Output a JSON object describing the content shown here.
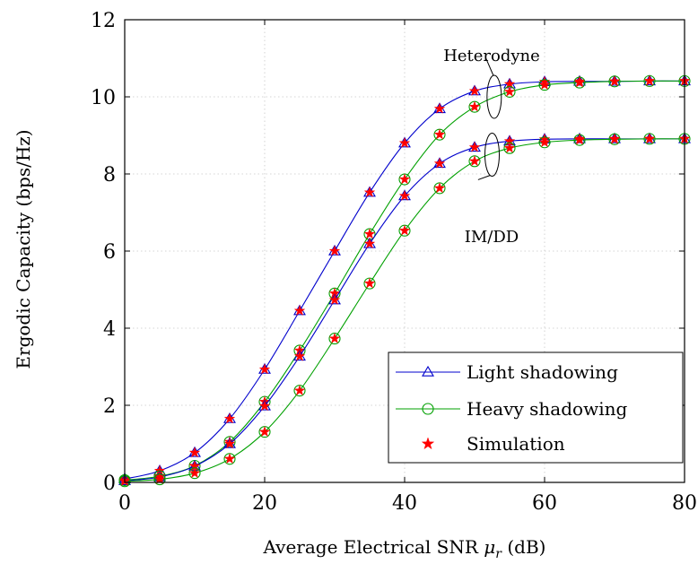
{
  "chart_data": {
    "type": "line",
    "xlabel": "Average Electrical SNR",
    "xlabel_symbol": "μ",
    "xlabel_subscript": "r",
    "xlabel_unit": "(dB)",
    "ylabel": "Ergodic Capacity (bps/Hz)",
    "xlim": [
      0,
      80
    ],
    "ylim": [
      0,
      12
    ],
    "xticks": [
      0,
      20,
      40,
      60,
      80
    ],
    "yticks": [
      0,
      2,
      4,
      6,
      8,
      10,
      12
    ],
    "grid": true,
    "legend_position": "bottom-right",
    "x": [
      0,
      5,
      10,
      15,
      20,
      25,
      30,
      35,
      40,
      45,
      50,
      55,
      60,
      65,
      70,
      75,
      80
    ],
    "series": [
      {
        "name": "Light shadowing",
        "detection": "Heterodyne",
        "color": "#0000cc",
        "marker": "triangle",
        "values": [
          0.09,
          0.3,
          0.77,
          1.65,
          2.93,
          4.45,
          6.0,
          7.52,
          8.8,
          9.69,
          10.15,
          10.33,
          10.39,
          10.4,
          10.4,
          10.41,
          10.41
        ]
      },
      {
        "name": "Heavy shadowing",
        "detection": "Heterodyne",
        "color": "#00a000",
        "marker": "circle",
        "values": [
          0.06,
          0.16,
          0.43,
          1.05,
          2.09,
          3.42,
          4.9,
          6.44,
          7.86,
          9.02,
          9.74,
          10.13,
          10.31,
          10.37,
          10.4,
          10.41,
          10.41
        ]
      },
      {
        "name": "Light shadowing",
        "detection": "IM/DD",
        "color": "#0000cc",
        "marker": "triangle",
        "values": [
          0.04,
          0.14,
          0.42,
          1.0,
          1.98,
          3.27,
          4.73,
          6.19,
          7.43,
          8.27,
          8.69,
          8.85,
          8.9,
          8.91,
          8.91,
          8.91,
          8.91
        ]
      },
      {
        "name": "Heavy shadowing",
        "detection": "IM/DD",
        "color": "#00a000",
        "marker": "circle",
        "values": [
          0.03,
          0.08,
          0.24,
          0.61,
          1.31,
          2.38,
          3.73,
          5.16,
          6.53,
          7.63,
          8.33,
          8.67,
          8.82,
          8.88,
          8.9,
          8.91,
          8.91
        ]
      }
    ],
    "legend": [
      {
        "label": "Light shadowing",
        "color": "#0000cc",
        "marker": "triangle"
      },
      {
        "label": "Heavy shadowing",
        "color": "#00a000",
        "marker": "circle"
      },
      {
        "label": "Simulation",
        "color": "#ff0000",
        "marker": "star"
      }
    ],
    "annotations": [
      {
        "text": "Heterodyne",
        "x": 55,
        "y": 10.6
      },
      {
        "text": "IM/DD",
        "x": 45,
        "y": 8.0
      }
    ]
  }
}
